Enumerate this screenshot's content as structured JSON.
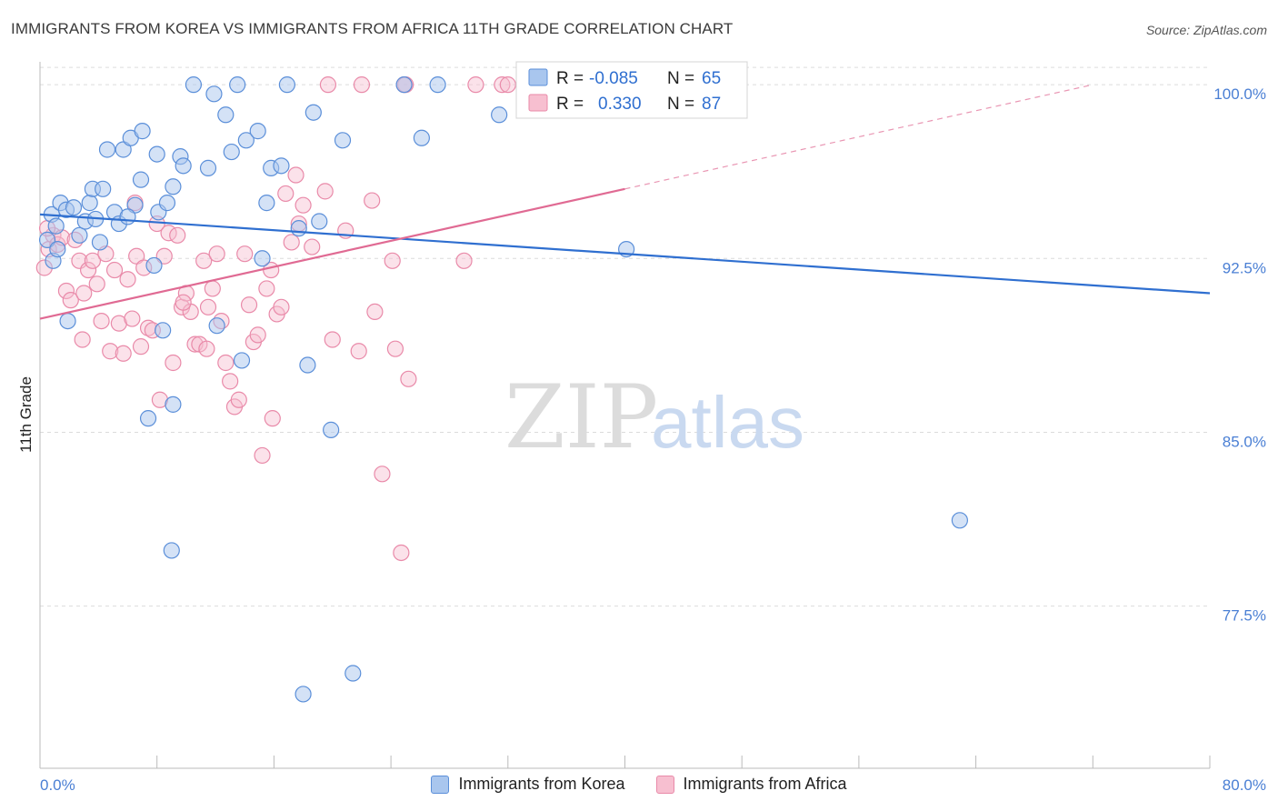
{
  "title": "IMMIGRANTS FROM KOREA VS IMMIGRANTS FROM AFRICA 11TH GRADE CORRELATION CHART",
  "source": "Source: ZipAtlas.com",
  "watermark": {
    "zip": "ZIP",
    "atlas": "atlas"
  },
  "legend_box": {
    "r_label": "R =",
    "n_label": "N =",
    "rows": [
      {
        "r": "-0.085",
        "n": "65"
      },
      {
        "r": "0.330",
        "n": "87"
      }
    ]
  },
  "colors": {
    "korea_fill": "#a9c6ee",
    "korea_stroke": "#5b8fd9",
    "korea_line": "#2f6fd0",
    "africa_fill": "#f7bfd0",
    "africa_stroke": "#e98aa9",
    "africa_line": "#e06a93",
    "grid": "#dcdcdc",
    "tick_text": "#4a7fd4"
  },
  "chart_data": {
    "type": "scatter",
    "title": "IMMIGRANTS FROM KOREA VS IMMIGRANTS FROM AFRICA 11TH GRADE CORRELATION CHART",
    "xlabel": "",
    "ylabel": "11th Grade",
    "xlim": [
      0.0,
      80.0
    ],
    "ylim": [
      70.5,
      101.3
    ],
    "x_tick_labels": [
      "0.0%",
      "80.0%"
    ],
    "y_ticks": [
      77.5,
      85.0,
      92.5,
      100.0
    ],
    "y_tick_labels": [
      "77.5%",
      "85.0%",
      "92.5%",
      "100.0%"
    ],
    "grid": "horizontal-dashed",
    "legend_position": "top-center",
    "series": [
      {
        "name": "Immigrants from Korea",
        "r": -0.085,
        "n": 65,
        "trend": {
          "x": [
            0.0,
            80.0
          ],
          "y": [
            94.4,
            91.0
          ]
        },
        "points": [
          [
            0.5,
            93.3
          ],
          [
            0.8,
            94.4
          ],
          [
            1.1,
            93.9
          ],
          [
            1.4,
            94.9
          ],
          [
            1.8,
            94.6
          ],
          [
            2.3,
            94.7
          ],
          [
            2.7,
            93.5
          ],
          [
            3.1,
            94.1
          ],
          [
            3.4,
            94.9
          ],
          [
            3.6,
            95.5
          ],
          [
            4.1,
            93.2
          ],
          [
            4.3,
            95.5
          ],
          [
            4.6,
            97.2
          ],
          [
            5.1,
            94.5
          ],
          [
            5.4,
            94.0
          ],
          [
            5.7,
            97.2
          ],
          [
            6.2,
            97.7
          ],
          [
            6.5,
            94.8
          ],
          [
            6.9,
            95.9
          ],
          [
            7.0,
            98.0
          ],
          [
            7.8,
            92.2
          ],
          [
            8.1,
            94.5
          ],
          [
            8.0,
            97.0
          ],
          [
            8.7,
            94.9
          ],
          [
            9.1,
            95.6
          ],
          [
            9.6,
            96.9
          ],
          [
            9.8,
            96.5
          ],
          [
            10.5,
            100.0
          ],
          [
            11.5,
            96.4
          ],
          [
            11.9,
            99.6
          ],
          [
            12.7,
            98.7
          ],
          [
            13.1,
            97.1
          ],
          [
            13.5,
            100.0
          ],
          [
            14.1,
            97.6
          ],
          [
            14.9,
            98.0
          ],
          [
            15.2,
            92.5
          ],
          [
            15.5,
            94.9
          ],
          [
            15.8,
            96.4
          ],
          [
            16.5,
            96.5
          ],
          [
            16.9,
            100.0
          ],
          [
            17.7,
            93.8
          ],
          [
            18.7,
            98.8
          ],
          [
            19.1,
            94.1
          ],
          [
            20.7,
            97.6
          ],
          [
            24.9,
            100.0
          ],
          [
            26.1,
            97.7
          ],
          [
            27.2,
            100.0
          ],
          [
            31.4,
            98.7
          ],
          [
            40.1,
            92.9
          ],
          [
            62.9,
            81.2
          ],
          [
            1.9,
            89.8
          ],
          [
            8.4,
            89.4
          ],
          [
            12.1,
            89.6
          ],
          [
            13.8,
            88.1
          ],
          [
            18.3,
            87.9
          ],
          [
            9.1,
            86.2
          ],
          [
            7.4,
            85.6
          ],
          [
            19.9,
            85.1
          ],
          [
            9.0,
            79.9
          ],
          [
            21.4,
            74.6
          ],
          [
            18.0,
            73.7
          ],
          [
            0.9,
            92.4
          ],
          [
            1.2,
            92.9
          ],
          [
            6.0,
            94.3
          ],
          [
            3.8,
            94.2
          ]
        ]
      },
      {
        "name": "Immigrants from Africa",
        "r": 0.33,
        "n": 87,
        "trend": {
          "x": [
            0.0,
            40.0
          ],
          "y": [
            89.9,
            95.5
          ]
        },
        "trend_extension": {
          "x": [
            40.0,
            72.0
          ],
          "y": [
            95.5,
            100.0
          ]
        },
        "points": [
          [
            0.3,
            92.1
          ],
          [
            0.6,
            92.9
          ],
          [
            0.9,
            93.5
          ],
          [
            1.2,
            93.1
          ],
          [
            1.5,
            93.4
          ],
          [
            1.8,
            91.1
          ],
          [
            2.1,
            90.7
          ],
          [
            2.4,
            93.3
          ],
          [
            2.7,
            92.4
          ],
          [
            3.0,
            91.0
          ],
          [
            3.3,
            92.0
          ],
          [
            3.6,
            92.4
          ],
          [
            3.9,
            91.4
          ],
          [
            4.2,
            89.8
          ],
          [
            4.5,
            92.7
          ],
          [
            4.8,
            88.5
          ],
          [
            5.1,
            92.0
          ],
          [
            5.4,
            89.7
          ],
          [
            5.7,
            88.4
          ],
          [
            6.0,
            91.6
          ],
          [
            6.3,
            89.9
          ],
          [
            6.6,
            92.6
          ],
          [
            6.9,
            88.7
          ],
          [
            7.1,
            92.1
          ],
          [
            7.4,
            89.5
          ],
          [
            7.7,
            89.4
          ],
          [
            8.0,
            94.0
          ],
          [
            8.2,
            86.4
          ],
          [
            8.5,
            92.6
          ],
          [
            8.8,
            93.6
          ],
          [
            9.1,
            88.0
          ],
          [
            9.4,
            93.5
          ],
          [
            9.7,
            90.4
          ],
          [
            10.0,
            91.0
          ],
          [
            10.3,
            90.2
          ],
          [
            10.6,
            88.8
          ],
          [
            10.9,
            88.8
          ],
          [
            11.2,
            92.4
          ],
          [
            11.5,
            90.4
          ],
          [
            11.8,
            91.2
          ],
          [
            12.1,
            92.7
          ],
          [
            12.4,
            89.8
          ],
          [
            12.7,
            88.0
          ],
          [
            13.0,
            87.2
          ],
          [
            13.3,
            86.1
          ],
          [
            13.6,
            86.4
          ],
          [
            14.0,
            92.7
          ],
          [
            14.3,
            90.5
          ],
          [
            14.6,
            88.9
          ],
          [
            14.9,
            89.2
          ],
          [
            15.2,
            84.0
          ],
          [
            15.5,
            91.2
          ],
          [
            15.9,
            85.6
          ],
          [
            16.2,
            90.1
          ],
          [
            16.5,
            90.4
          ],
          [
            16.8,
            95.3
          ],
          [
            17.2,
            93.2
          ],
          [
            17.7,
            94.0
          ],
          [
            18.0,
            94.8
          ],
          [
            18.6,
            93.0
          ],
          [
            19.5,
            95.4
          ],
          [
            20.0,
            89.0
          ],
          [
            20.9,
            93.7
          ],
          [
            21.8,
            88.5
          ],
          [
            22.7,
            95.0
          ],
          [
            22.9,
            90.2
          ],
          [
            23.4,
            83.2
          ],
          [
            24.1,
            92.4
          ],
          [
            24.3,
            88.6
          ],
          [
            25.2,
            87.3
          ],
          [
            25.0,
            100.0
          ],
          [
            19.7,
            100.0
          ],
          [
            22.0,
            100.0
          ],
          [
            24.9,
            100.0
          ],
          [
            29.0,
            92.4
          ],
          [
            29.8,
            100.0
          ],
          [
            31.6,
            100.0
          ],
          [
            32.0,
            100.0
          ],
          [
            33.1,
            100.0
          ],
          [
            24.7,
            79.8
          ],
          [
            15.8,
            92.0
          ],
          [
            17.5,
            96.1
          ],
          [
            11.4,
            88.6
          ],
          [
            9.8,
            90.6
          ],
          [
            2.9,
            89.0
          ],
          [
            0.5,
            93.8
          ],
          [
            6.5,
            94.9
          ]
        ]
      }
    ]
  },
  "bottom_legend": [
    {
      "label": "Immigrants from Korea"
    },
    {
      "label": "Immigrants from Africa"
    }
  ]
}
